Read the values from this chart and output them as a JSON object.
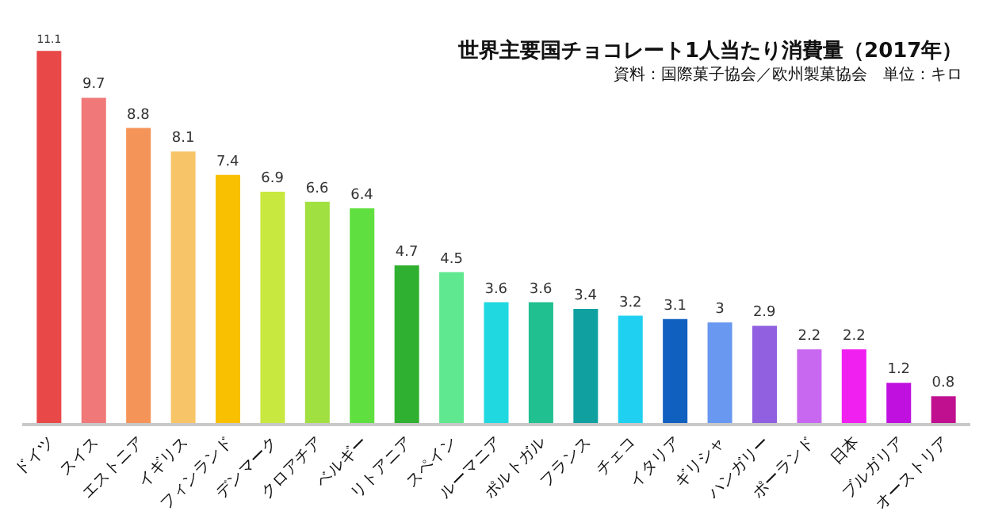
{
  "chart_data": {
    "type": "bar",
    "title": "世界主要国チョコレート1人当たり消費量（2017年）",
    "subtitle": "資料：国際菓子協会／欧州製菓協会　単位：キロ",
    "categories": [
      "ドイツ",
      "スイス",
      "エストニア",
      "イギリス",
      "フィンランド",
      "デンマーク",
      "クロアチア",
      "ベルギー",
      "リトアニア",
      "スペイン",
      "ルーマニア",
      "ポルトガル",
      "フランス",
      "チェコ",
      "イタリア",
      "ギリシャ",
      "ハンガリー",
      "ポーランド",
      "日本",
      "ブルガリア",
      "オーストリア"
    ],
    "values": [
      11.1,
      9.7,
      8.8,
      8.1,
      7.4,
      6.9,
      6.6,
      6.4,
      4.7,
      4.5,
      3.6,
      3.6,
      3.4,
      3.2,
      3.1,
      3,
      2.9,
      2.2,
      2.2,
      1.2,
      0.8
    ],
    "value_labels": [
      "11.1",
      "9.7",
      "8.8",
      "8.1",
      "7.4",
      "6.9",
      "6.6",
      "6.4",
      "4.7",
      "4.5",
      "3.6",
      "3.6",
      "3.4",
      "3.2",
      "3.1",
      "3",
      "2.9",
      "2.2",
      "2.2",
      "1.2",
      "0.8"
    ],
    "colors": [
      "#e84848",
      "#f07878",
      "#f59458",
      "#f8c468",
      "#f8c000",
      "#c8e840",
      "#a0e040",
      "#60e040",
      "#30b030",
      "#60e890",
      "#20d8e0",
      "#20c090",
      "#10a0a0",
      "#20d0f0",
      "#1060c0",
      "#6898f0",
      "#9060e0",
      "#c868f0",
      "#f020f0",
      "#c010e0",
      "#c01090"
    ],
    "data_labels": true
  }
}
